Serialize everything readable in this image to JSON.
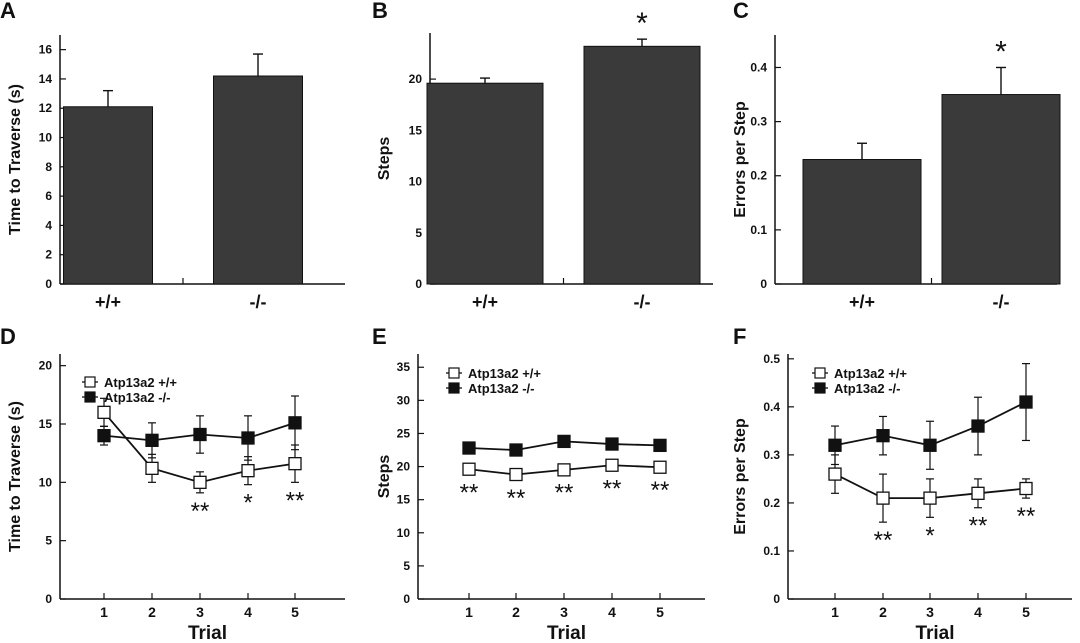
{
  "chart_data": [
    {
      "type": "bar",
      "panel": "A",
      "categories": [
        "+/+",
        "-/-"
      ],
      "values": [
        12.1,
        14.2
      ],
      "errors": [
        1.1,
        1.5
      ],
      "significance": [
        "",
        ""
      ],
      "ylabel": "Time to Traverse (s)",
      "xlabel": "",
      "ylim": [
        0,
        17
      ],
      "yticks": [
        0,
        2,
        4,
        6,
        8,
        10,
        12,
        14,
        16
      ],
      "ytick_labels": [
        "0",
        "2",
        "4",
        "6",
        "8",
        "10",
        "12",
        "14",
        "16"
      ],
      "bar_color": "#3a3a3a"
    },
    {
      "type": "bar",
      "panel": "B",
      "categories": [
        "+/+",
        "-/-"
      ],
      "values": [
        19.6,
        23.2
      ],
      "errors": [
        0.5,
        0.7
      ],
      "significance": [
        "",
        "*"
      ],
      "ylabel": "Steps",
      "xlabel": "",
      "ylim": [
        0,
        24.5
      ],
      "yticks": [
        0,
        5,
        10,
        15,
        20
      ],
      "ytick_labels": [
        "0",
        "5",
        "10",
        "15",
        "20"
      ],
      "bar_color": "#3a3a3a"
    },
    {
      "type": "bar",
      "panel": "C",
      "categories": [
        "+/+",
        "-/-"
      ],
      "values": [
        0.23,
        0.35
      ],
      "errors": [
        0.03,
        0.05
      ],
      "significance": [
        "",
        "*"
      ],
      "ylabel": "Errors per Step",
      "xlabel": "",
      "ylim": [
        0,
        0.46
      ],
      "yticks": [
        0,
        0.1,
        0.2,
        0.3,
        0.4
      ],
      "ytick_labels": [
        "0",
        "0.1",
        "0.2",
        "0.3",
        "0.4"
      ],
      "bar_color": "#3a3a3a"
    },
    {
      "type": "line",
      "panel": "D",
      "x": [
        1,
        2,
        3,
        4,
        5
      ],
      "xtick_labels": [
        "1",
        "2",
        "3",
        "4",
        "5"
      ],
      "xlim": [
        0,
        6
      ],
      "xlabel": "Trial",
      "ylabel": "Time to Traverse (s)",
      "ylim": [
        0,
        21
      ],
      "yticks": [
        0,
        5,
        10,
        15,
        20
      ],
      "ytick_labels": [
        "0",
        "5",
        "10",
        "15",
        "20"
      ],
      "series": [
        {
          "name": "Atp13a2 +/+",
          "marker": "open-square",
          "values": [
            16.0,
            11.2,
            10.0,
            11.0,
            11.6
          ],
          "errors": [
            1.2,
            1.2,
            0.9,
            1.2,
            1.6
          ]
        },
        {
          "name": "Atp13a2 -/-",
          "marker": "filled-square",
          "values": [
            14.0,
            13.6,
            14.1,
            13.8,
            15.1
          ],
          "errors": [
            0.8,
            1.5,
            1.6,
            1.9,
            2.3
          ]
        }
      ],
      "significance": [
        "",
        "",
        "**",
        "*",
        "**"
      ]
    },
    {
      "type": "line",
      "panel": "E",
      "x": [
        1,
        2,
        3,
        4,
        5
      ],
      "xtick_labels": [
        "1",
        "2",
        "3",
        "4",
        "5"
      ],
      "xlim": [
        0,
        6
      ],
      "xlabel": "Trial",
      "ylabel": "Steps",
      "ylim": [
        0,
        37
      ],
      "yticks": [
        0,
        5,
        10,
        15,
        20,
        25,
        30,
        35
      ],
      "ytick_labels": [
        "0",
        "5",
        "10",
        "15",
        "20",
        "25",
        "30",
        "35"
      ],
      "series": [
        {
          "name": "Atp13a2 +/+",
          "marker": "open-square",
          "values": [
            19.6,
            18.8,
            19.5,
            20.2,
            19.9
          ],
          "errors": [
            0.8,
            0.8,
            0.7,
            0.8,
            0.7
          ]
        },
        {
          "name": "Atp13a2 -/-",
          "marker": "filled-square",
          "values": [
            22.8,
            22.5,
            23.8,
            23.4,
            23.2
          ],
          "errors": [
            0.6,
            0.6,
            0.6,
            0.6,
            0.6
          ]
        }
      ],
      "significance": [
        "**",
        "**",
        "**",
        "**",
        "**"
      ]
    },
    {
      "type": "line",
      "panel": "F",
      "x": [
        1,
        2,
        3,
        4,
        5
      ],
      "xtick_labels": [
        "1",
        "2",
        "3",
        "4",
        "5"
      ],
      "xlim": [
        0,
        6
      ],
      "xlabel": "Trial",
      "ylabel": "Errors per Step",
      "ylim": [
        0,
        0.51
      ],
      "yticks": [
        0,
        0.1,
        0.2,
        0.3,
        0.4,
        0.5
      ],
      "ytick_labels": [
        "0",
        "0.1",
        "0.2",
        "0.3",
        "0.4",
        "0.5"
      ],
      "series": [
        {
          "name": "Atp13a2 +/+",
          "marker": "open-square",
          "values": [
            0.26,
            0.21,
            0.21,
            0.22,
            0.23
          ],
          "errors": [
            0.04,
            0.05,
            0.04,
            0.03,
            0.02
          ]
        },
        {
          "name": "Atp13a2 -/-",
          "marker": "filled-square",
          "values": [
            0.32,
            0.34,
            0.32,
            0.36,
            0.41
          ],
          "errors": [
            0.04,
            0.04,
            0.05,
            0.06,
            0.08
          ]
        }
      ],
      "significance": [
        "",
        "**",
        "*",
        "**",
        "**"
      ]
    }
  ],
  "colors": {
    "bar": "#3a3a3a",
    "ink": "#111111",
    "open_marker_fill": "#ffffff"
  }
}
